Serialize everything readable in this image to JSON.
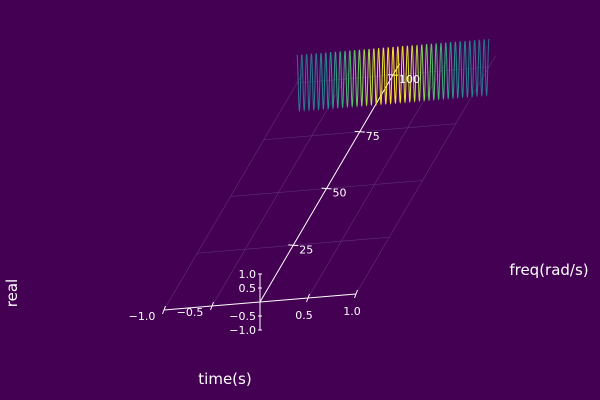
{
  "chart_data": {
    "type": "line",
    "projection": "3d",
    "title": "",
    "xlabel": "time(s)",
    "ylabel": "freq(rad/s)",
    "zlabel": "real",
    "xlim": [
      -1.0,
      1.0
    ],
    "ylim": [
      0,
      105
    ],
    "zlim": [
      -1.0,
      1.0
    ],
    "x_ticks": [
      {
        "value": -1.0,
        "label": "−1.0"
      },
      {
        "value": -0.5,
        "label": "−0.5"
      },
      {
        "value": 0.5,
        "label": "0.5"
      },
      {
        "value": 1.0,
        "label": "1.0"
      }
    ],
    "y_ticks": [
      {
        "value": 25,
        "label": "25"
      },
      {
        "value": 50,
        "label": "50"
      },
      {
        "value": 75,
        "label": "75"
      },
      {
        "value": 100,
        "label": "100"
      }
    ],
    "z_ticks": [
      {
        "value": 1.0,
        "label": "1.0"
      },
      {
        "value": 0.5,
        "label": "0.5"
      },
      {
        "value": -0.5,
        "label": "−0.5"
      },
      {
        "value": -1.0,
        "label": "−1.0"
      }
    ],
    "grid": true,
    "legend": "none",
    "series": [
      {
        "frequency": 100,
        "x_range": [
          -1.0,
          1.0
        ],
        "y": 100,
        "amplitude": 1.0,
        "envelope": "gaussian",
        "oscillations": 40,
        "colormap": "viridis",
        "color_scale": "amplitude"
      }
    ]
  },
  "colors": {
    "background": "#440154",
    "axis": "#ffffff",
    "grid": "#6a3d86"
  }
}
